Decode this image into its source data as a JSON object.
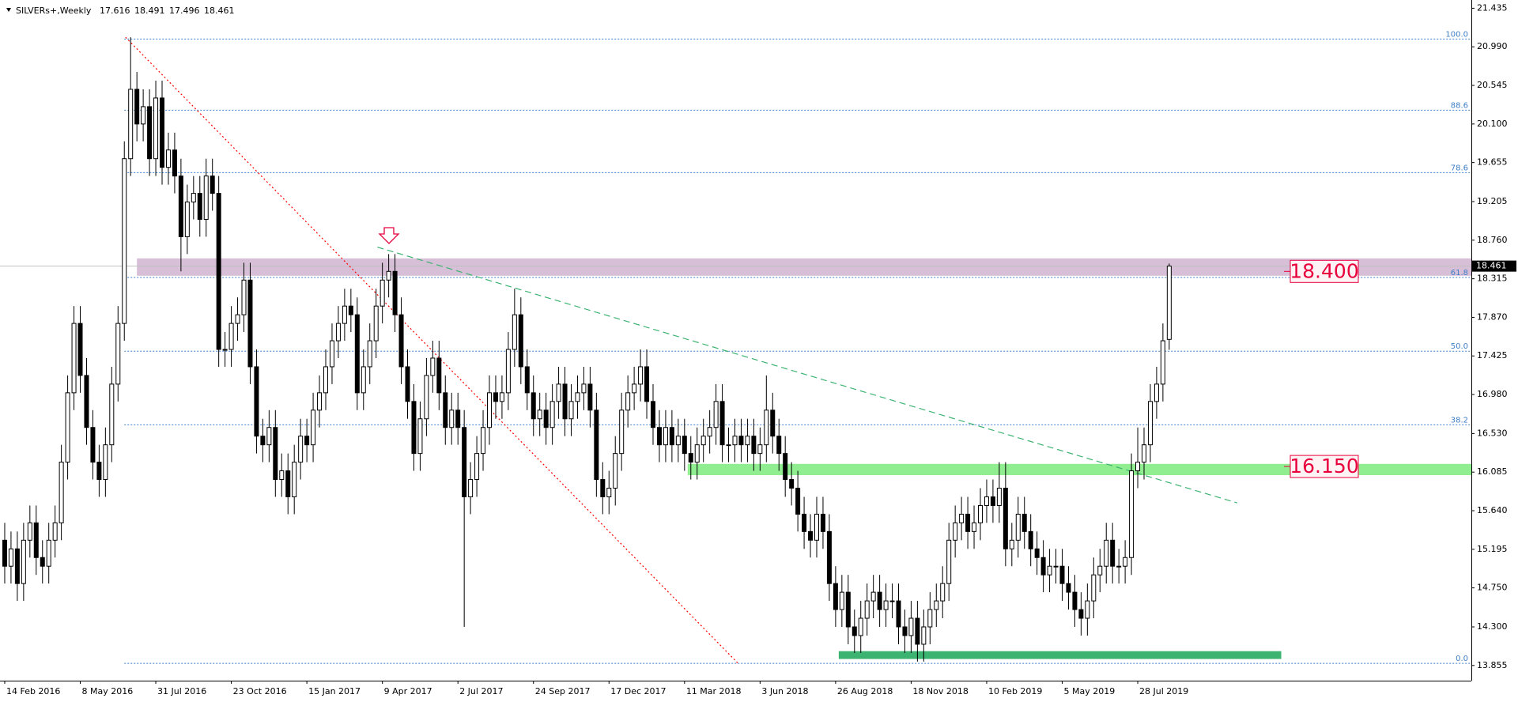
{
  "chart_data": {
    "type": "candlestick",
    "title": "SILVERs+,Weekly",
    "ohlc_header": [
      17.616,
      18.491,
      17.496,
      18.461
    ],
    "up_color": "#ffffff",
    "down_color": "#000000",
    "wick_color": "#000000",
    "xlim": [
      -0.75,
      233
    ],
    "ylim": [
      13.68,
      21.53
    ],
    "yticks": [
      21.435,
      {
        "value": 20.99,
        "label": "20.990"
      },
      20.545,
      {
        "value": 20.1,
        "label": "20.100"
      },
      19.655,
      19.205,
      {
        "value": 18.76,
        "label": "18.760"
      },
      18.315,
      {
        "value": 17.87,
        "label": "17.870"
      },
      17.425,
      {
        "value": 16.98,
        "label": "16.980"
      },
      {
        "value": 16.53,
        "label": "16.530"
      },
      16.085,
      {
        "value": 15.64,
        "label": "15.640"
      },
      15.195,
      {
        "value": 14.75,
        "label": "14.750"
      },
      {
        "value": 14.3,
        "label": "14.300"
      },
      13.855
    ],
    "xticks": [
      {
        "value": 0,
        "label": "14 Feb 2016"
      },
      {
        "value": 12,
        "label": "8 May 2016"
      },
      {
        "value": 24,
        "label": "31 Jul 2016"
      },
      {
        "value": 36,
        "label": "23 Oct 2016"
      },
      {
        "value": 48,
        "label": "15 Jan 2017"
      },
      {
        "value": 60,
        "label": "9 Apr 2017"
      },
      {
        "value": 72,
        "label": "2 Jul 2017"
      },
      {
        "value": 84,
        "label": "24 Sep 2017"
      },
      {
        "value": 96,
        "label": "17 Dec 2017"
      },
      {
        "value": 108,
        "label": "11 Mar 2018"
      },
      {
        "value": 120,
        "label": "3 Jun 2018"
      },
      {
        "value": 132,
        "label": "26 Aug 2018"
      },
      {
        "value": 144,
        "label": "18 Nov 2018"
      },
      {
        "value": 156,
        "label": "10 Feb 2019"
      },
      {
        "value": 168,
        "label": "5 May 2019"
      },
      {
        "value": 180,
        "label": "28 Jul 2019"
      }
    ],
    "open": [
      15.3,
      15.0,
      15.2,
      14.8,
      15.3,
      15.5,
      15.1,
      15.0,
      15.3,
      15.5,
      16.2,
      17.0,
      17.8,
      17.2,
      16.6,
      16.2,
      16.0,
      16.4,
      17.1,
      17.8,
      19.7,
      20.5,
      20.1,
      20.3,
      19.7,
      20.4,
      19.6,
      19.8,
      19.5,
      18.8,
      19.2,
      19.3,
      19.0,
      19.5,
      19.3,
      17.5,
      17.5,
      17.8,
      17.9,
      18.3,
      17.3,
      16.5,
      16.4,
      16.6,
      16.0,
      16.1,
      15.8,
      16.2,
      16.5,
      16.4,
      16.8,
      17.0,
      17.3,
      17.6,
      17.8,
      18.0,
      17.9,
      17.0,
      17.3,
      17.6,
      18.0,
      18.3,
      18.4,
      17.9,
      17.3,
      16.9,
      16.3,
      16.7,
      17.2,
      17.4,
      17.0,
      16.6,
      16.8,
      16.6,
      15.8,
      16.0,
      16.3,
      16.6,
      17.0,
      16.9,
      17.0,
      17.5,
      17.9,
      17.3,
      17.0,
      16.7,
      16.8,
      16.6,
      16.9,
      17.1,
      16.7,
      16.9,
      17.0,
      17.1,
      16.8,
      16.0,
      15.8,
      15.9,
      16.3,
      16.8,
      17.0,
      17.1,
      17.3,
      16.9,
      16.6,
      16.4,
      16.6,
      16.4,
      16.5,
      16.3,
      16.2,
      16.4,
      16.5,
      16.6,
      16.9,
      16.4,
      16.4,
      16.5,
      16.4,
      16.5,
      16.3,
      16.4,
      16.8,
      16.5,
      16.3,
      16.0,
      15.9,
      15.6,
      15.4,
      15.3,
      15.6,
      15.4,
      14.8,
      14.5,
      14.7,
      14.3,
      14.2,
      14.4,
      14.6,
      14.7,
      14.5,
      14.6,
      14.6,
      14.3,
      14.2,
      14.4,
      14.1,
      14.3,
      14.5,
      14.6,
      14.8,
      15.3,
      15.5,
      15.6,
      15.4,
      15.5,
      15.7,
      15.8,
      15.7,
      15.9,
      15.2,
      15.3,
      15.6,
      15.4,
      15.2,
      15.1,
      14.9,
      15.0,
      15.0,
      14.8,
      14.7,
      14.5,
      14.4,
      14.6,
      14.9,
      15.0,
      15.3,
      15.0,
      15.0,
      15.1,
      16.1,
      16.2,
      16.4,
      16.9,
      17.1,
      17.616
    ],
    "high": [
      15.5,
      15.4,
      15.4,
      15.5,
      15.7,
      15.7,
      15.3,
      15.5,
      15.7,
      16.4,
      17.2,
      18.0,
      18.0,
      17.4,
      16.8,
      16.4,
      16.6,
      17.3,
      18.0,
      19.9,
      21.1,
      20.7,
      20.5,
      20.5,
      20.6,
      20.6,
      20.0,
      20.0,
      19.7,
      19.4,
      19.5,
      19.5,
      19.7,
      19.7,
      19.5,
      17.7,
      18.0,
      18.1,
      18.5,
      18.5,
      17.5,
      16.7,
      16.8,
      16.8,
      16.3,
      16.3,
      16.4,
      16.7,
      16.7,
      17.0,
      17.2,
      17.5,
      17.8,
      18.0,
      18.2,
      18.2,
      18.1,
      17.5,
      17.8,
      18.2,
      18.5,
      18.6,
      18.6,
      18.1,
      17.5,
      17.1,
      16.9,
      17.4,
      17.6,
      17.6,
      17.2,
      17.0,
      17.0,
      16.8,
      16.2,
      16.5,
      16.8,
      17.2,
      17.2,
      17.2,
      17.7,
      18.2,
      18.1,
      17.5,
      17.2,
      17.0,
      17.0,
      17.1,
      17.3,
      17.3,
      17.1,
      17.2,
      17.3,
      17.3,
      17.0,
      16.2,
      16.1,
      16.5,
      17.0,
      17.2,
      17.3,
      17.5,
      17.5,
      17.1,
      16.8,
      16.8,
      16.8,
      16.7,
      16.7,
      16.5,
      16.6,
      16.7,
      16.8,
      17.1,
      17.1,
      16.6,
      16.7,
      16.7,
      16.7,
      16.7,
      16.6,
      17.2,
      17.0,
      16.7,
      16.5,
      16.2,
      16.1,
      15.8,
      15.6,
      15.8,
      15.8,
      15.6,
      15.0,
      14.9,
      14.9,
      14.5,
      14.6,
      14.8,
      14.9,
      14.9,
      14.8,
      14.8,
      14.8,
      14.5,
      14.6,
      14.6,
      14.5,
      14.7,
      14.8,
      15.0,
      15.5,
      15.7,
      15.8,
      15.8,
      15.7,
      15.9,
      16.0,
      16.0,
      16.2,
      16.2,
      15.5,
      15.8,
      15.8,
      15.6,
      15.4,
      15.3,
      15.2,
      15.2,
      15.2,
      15.0,
      14.9,
      14.7,
      14.8,
      15.1,
      15.2,
      15.5,
      15.5,
      15.2,
      15.3,
      16.3,
      16.6,
      16.6,
      17.1,
      17.3,
      17.8,
      18.491
    ],
    "low": [
      14.8,
      14.8,
      14.6,
      14.6,
      15.1,
      14.9,
      14.8,
      14.8,
      15.1,
      15.3,
      16.0,
      16.8,
      17.0,
      16.4,
      16.0,
      15.8,
      15.8,
      16.2,
      16.9,
      17.6,
      19.5,
      19.9,
      19.9,
      19.5,
      19.5,
      19.4,
      19.4,
      19.3,
      18.4,
      18.6,
      19.0,
      18.8,
      18.8,
      19.1,
      17.3,
      17.3,
      17.3,
      17.6,
      17.7,
      17.1,
      16.3,
      16.2,
      16.2,
      15.8,
      15.8,
      15.6,
      15.6,
      16.0,
      16.2,
      16.2,
      16.6,
      16.8,
      17.1,
      17.4,
      17.6,
      17.7,
      16.8,
      16.8,
      17.1,
      17.4,
      17.8,
      18.1,
      17.7,
      17.1,
      16.7,
      16.1,
      16.1,
      16.5,
      17.0,
      16.8,
      16.4,
      16.4,
      16.4,
      14.3,
      15.6,
      15.8,
      16.1,
      16.4,
      16.7,
      16.7,
      16.8,
      17.3,
      17.1,
      16.8,
      16.5,
      16.5,
      16.4,
      16.4,
      16.7,
      16.5,
      16.5,
      16.7,
      16.8,
      16.6,
      15.8,
      15.6,
      15.6,
      15.7,
      16.1,
      16.6,
      16.8,
      16.9,
      16.7,
      16.4,
      16.2,
      16.2,
      16.2,
      16.2,
      16.1,
      16.0,
      16.0,
      16.2,
      16.3,
      16.4,
      16.2,
      16.2,
      16.2,
      16.2,
      16.2,
      16.1,
      16.1,
      16.2,
      16.3,
      16.1,
      15.8,
      15.7,
      15.4,
      15.2,
      15.1,
      15.1,
      15.2,
      14.6,
      14.3,
      14.3,
      14.1,
      14.0,
      14.0,
      14.2,
      14.4,
      14.3,
      14.3,
      14.4,
      14.1,
      14.0,
      14.0,
      13.9,
      13.9,
      14.1,
      14.3,
      14.4,
      14.6,
      15.1,
      15.3,
      15.2,
      15.2,
      15.3,
      15.5,
      15.5,
      15.5,
      15.0,
      15.0,
      15.1,
      15.2,
      15.0,
      14.9,
      14.7,
      14.7,
      14.8,
      14.6,
      14.5,
      14.3,
      14.2,
      14.2,
      14.4,
      14.7,
      14.8,
      14.8,
      14.8,
      14.8,
      14.9,
      15.9,
      16.0,
      16.2,
      16.7,
      16.9,
      17.496
    ],
    "close": [
      15.0,
      15.2,
      14.8,
      15.3,
      15.5,
      15.1,
      15.0,
      15.3,
      15.5,
      16.2,
      17.0,
      17.8,
      17.2,
      16.6,
      16.2,
      16.0,
      16.4,
      17.1,
      17.8,
      19.7,
      20.5,
      20.1,
      20.3,
      19.7,
      20.4,
      19.6,
      19.8,
      19.5,
      18.8,
      19.2,
      19.3,
      19.0,
      19.5,
      19.3,
      17.5,
      17.5,
      17.8,
      17.9,
      18.3,
      17.3,
      16.5,
      16.4,
      16.6,
      16.0,
      16.1,
      15.8,
      16.2,
      16.5,
      16.4,
      16.8,
      17.0,
      17.3,
      17.6,
      17.8,
      18.0,
      17.9,
      17.0,
      17.3,
      17.6,
      18.0,
      18.3,
      18.4,
      17.9,
      17.3,
      16.9,
      16.3,
      16.7,
      17.2,
      17.4,
      17.0,
      16.6,
      16.8,
      16.6,
      15.8,
      16.0,
      16.3,
      16.6,
      17.0,
      16.9,
      17.0,
      17.5,
      17.9,
      17.3,
      17.0,
      16.7,
      16.8,
      16.6,
      16.9,
      17.1,
      16.7,
      16.9,
      17.0,
      17.1,
      16.8,
      16.0,
      15.8,
      15.9,
      16.3,
      16.8,
      17.0,
      17.1,
      17.3,
      16.9,
      16.6,
      16.4,
      16.6,
      16.4,
      16.5,
      16.3,
      16.2,
      16.4,
      16.5,
      16.6,
      16.9,
      16.4,
      16.4,
      16.5,
      16.4,
      16.5,
      16.3,
      16.4,
      16.8,
      16.5,
      16.3,
      16.0,
      15.9,
      15.6,
      15.4,
      15.3,
      15.6,
      15.4,
      14.8,
      14.5,
      14.7,
      14.3,
      14.2,
      14.4,
      14.6,
      14.7,
      14.5,
      14.6,
      14.6,
      14.3,
      14.2,
      14.4,
      14.1,
      14.3,
      14.5,
      14.6,
      14.8,
      15.3,
      15.5,
      15.6,
      15.4,
      15.5,
      15.7,
      15.8,
      15.7,
      15.9,
      15.2,
      15.3,
      15.6,
      15.4,
      15.2,
      15.1,
      14.9,
      15.0,
      15.0,
      14.8,
      14.7,
      14.5,
      14.4,
      14.6,
      14.9,
      15.0,
      15.3,
      15.0,
      15.0,
      15.1,
      16.1,
      16.2,
      16.4,
      16.9,
      17.1,
      17.6,
      18.461
    ],
    "price_line_color": "#c0c0c0",
    "fibonacci": {
      "low": 13.88,
      "high": 21.08,
      "x0": 19,
      "color": "#3f7fc6",
      "levels": [
        {
          "value": 100,
          "label": "100.0"
        },
        88.6,
        78.6,
        61.8,
        {
          "value": 50,
          "label": "50.0"
        },
        38.2,
        {
          "value": 0,
          "label": "0.0"
        }
      ]
    },
    "zones": [
      {
        "from": 18.35,
        "to": 18.55,
        "x0": 21,
        "x1": 233,
        "color": "#d8bfd8"
      },
      {
        "from": 16.05,
        "to": 16.18,
        "x0": 108.5,
        "x1": 233,
        "color": "#90ee90"
      },
      {
        "from": 13.93,
        "to": 14.02,
        "x0": 132.5,
        "x1": 202.8,
        "color": "#3cb371"
      }
    ],
    "trendlines": [
      {
        "x0": 19.2,
        "y0": 21.1,
        "x1": 116.5,
        "y1": 13.88,
        "color": "#ff0000",
        "dash": "dotted"
      },
      {
        "x0": 59.2,
        "y0": 18.68,
        "x1": 195.8,
        "y1": 15.73,
        "color": "#3cb371",
        "dash": "dashed"
      }
    ],
    "price_labels": [
      {
        "value": 18.4,
        "label": "18.400"
      },
      {
        "value": 16.15,
        "label": "16.150"
      }
    ],
    "price_label_color": "#e8003d"
  }
}
